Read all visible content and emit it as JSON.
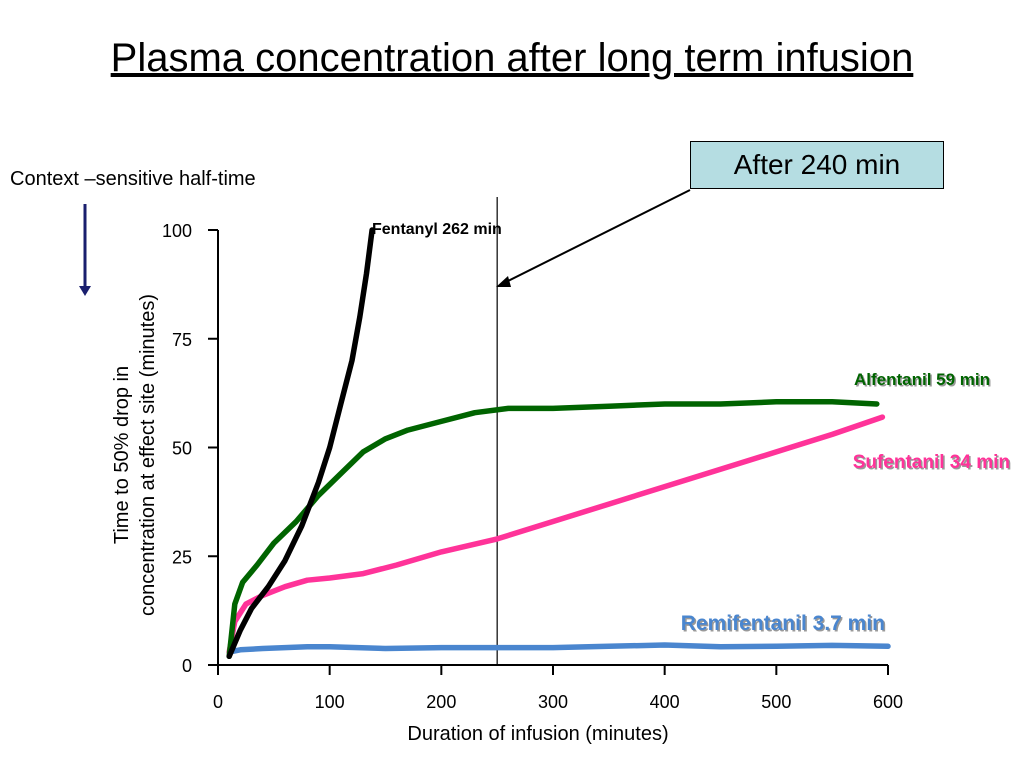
{
  "slide": {
    "title": "Plasma concentration after long term infusion",
    "context_label": "Context –sensitive half-time",
    "callout": "After 240 min"
  },
  "colors": {
    "Fentanyl": "#000000",
    "Alfentanil": "#006400",
    "Sufentanil": "#ff3399",
    "Remifentanil": "#4a86cf",
    "down_arrow": "#1a1f6e"
  },
  "chart_data": {
    "type": "line",
    "title": "",
    "xlabel": "Duration of infusion (minutes)",
    "ylabel": "Time to 50% drop in concentration at effect site (minutes)",
    "xlim": [
      0,
      600
    ],
    "ylim": [
      0,
      100
    ],
    "xticks": [
      0,
      100,
      200,
      300,
      400,
      500,
      600
    ],
    "yticks": [
      0,
      25,
      50,
      75,
      100
    ],
    "grid": false,
    "vline_x": 250,
    "series": [
      {
        "name": "Fentanyl",
        "label": "Fentanyl 262 min",
        "points": [
          [
            10,
            2
          ],
          [
            20,
            8
          ],
          [
            30,
            13
          ],
          [
            45,
            18
          ],
          [
            60,
            24
          ],
          [
            75,
            32
          ],
          [
            90,
            42
          ],
          [
            100,
            50
          ],
          [
            110,
            60
          ],
          [
            120,
            70
          ],
          [
            127,
            80
          ],
          [
            133,
            90
          ],
          [
            138,
            100
          ]
        ]
      },
      {
        "name": "Alfentanil",
        "label": "Alfentanil 59 min",
        "points": [
          [
            10,
            2
          ],
          [
            15,
            14
          ],
          [
            22,
            19
          ],
          [
            35,
            23
          ],
          [
            50,
            28
          ],
          [
            70,
            33
          ],
          [
            90,
            39
          ],
          [
            110,
            44
          ],
          [
            130,
            49
          ],
          [
            150,
            52
          ],
          [
            170,
            54
          ],
          [
            200,
            56
          ],
          [
            230,
            58
          ],
          [
            260,
            59
          ],
          [
            300,
            59
          ],
          [
            350,
            59.5
          ],
          [
            400,
            60
          ],
          [
            450,
            60
          ],
          [
            500,
            60.5
          ],
          [
            550,
            60.5
          ],
          [
            590,
            60
          ]
        ]
      },
      {
        "name": "Sufentanil",
        "label": "Sufentanil 34 min",
        "points": [
          [
            10,
            3
          ],
          [
            15,
            10
          ],
          [
            25,
            14
          ],
          [
            40,
            16
          ],
          [
            60,
            18
          ],
          [
            80,
            19.5
          ],
          [
            100,
            20
          ],
          [
            130,
            21
          ],
          [
            160,
            23
          ],
          [
            200,
            26
          ],
          [
            250,
            29
          ],
          [
            300,
            33
          ],
          [
            350,
            37
          ],
          [
            400,
            41
          ],
          [
            450,
            45
          ],
          [
            500,
            49
          ],
          [
            550,
            53
          ],
          [
            595,
            57
          ]
        ]
      },
      {
        "name": "Remifentanil",
        "label": "Remifentanil 3.7 min",
        "points": [
          [
            10,
            3
          ],
          [
            20,
            3.5
          ],
          [
            40,
            3.8
          ],
          [
            80,
            4.2
          ],
          [
            100,
            4.2
          ],
          [
            150,
            3.8
          ],
          [
            200,
            4.0
          ],
          [
            250,
            4.0
          ],
          [
            300,
            4.0
          ],
          [
            350,
            4.3
          ],
          [
            400,
            4.6
          ],
          [
            450,
            4.2
          ],
          [
            500,
            4.3
          ],
          [
            550,
            4.5
          ],
          [
            600,
            4.3
          ]
        ]
      }
    ]
  }
}
